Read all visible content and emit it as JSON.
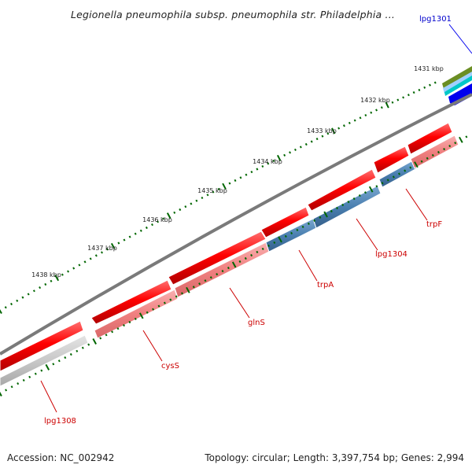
{
  "title": "Legionella pneumophila subsp. pneumophila str. Philadelphia ...",
  "footer": {
    "accession": "Accession: NC_002942",
    "summary": "Topology: circular; Length: 3,397,754 bp; Genes: 2,994"
  },
  "kbp_labels": [
    "1431 kbp",
    "1432 kbp",
    "1433 kbp",
    "1434 kbp",
    "1435 kbp",
    "1436 kbp",
    "1437 kbp",
    "1438 kbp"
  ],
  "gene_labels": [
    "lpg1301",
    "trpF",
    "lpg1304",
    "trpA",
    "glnS",
    "cysS",
    "lpg1308"
  ],
  "colors": {
    "forward_gene": "#ff0000",
    "reverse_gene": "#f08080",
    "reverse_gene_blue": "#4a7fb0",
    "reverse_gene_grey": "#c8c8c8",
    "backbone": "#7a7a7a",
    "tick": "#006600",
    "label_red": "#cc0000",
    "label_blue": "#0000cc"
  }
}
